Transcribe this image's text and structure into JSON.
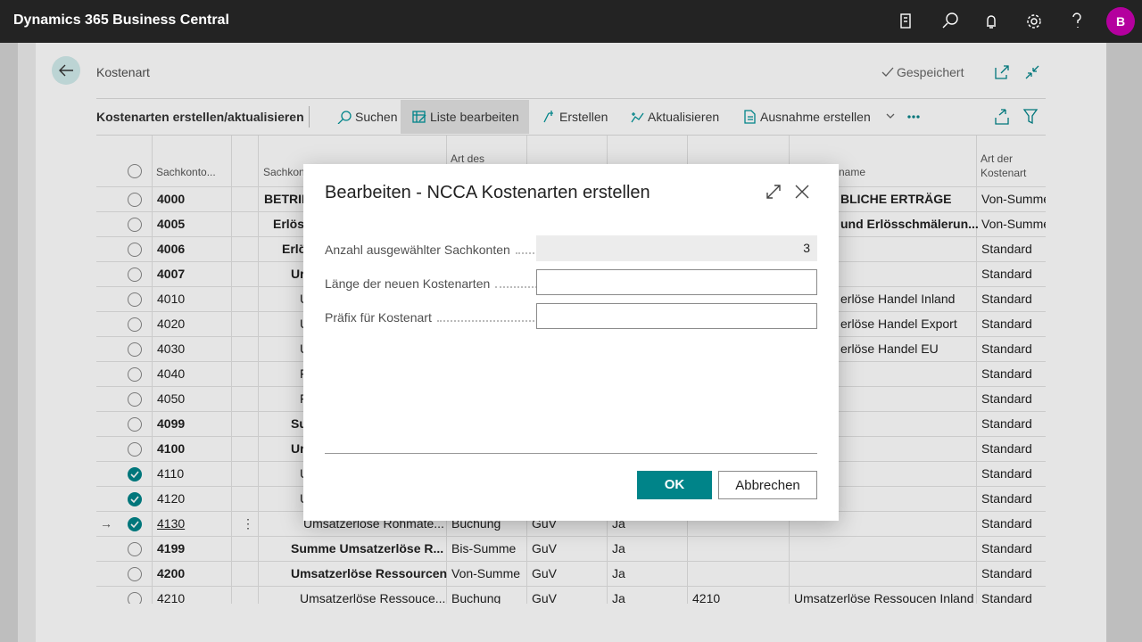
{
  "topbar": {
    "app_title": "Dynamics 365 Business Central",
    "avatar": "B"
  },
  "page": {
    "breadcrumb": "Kostenart",
    "status": "Gespeichert"
  },
  "actionbar": {
    "title": "Kostenarten erstellen/aktualisieren",
    "actions": [
      "Suchen",
      "Liste bearbeiten",
      "Erstellen",
      "Aktualisieren",
      "Ausnahme erstellen"
    ]
  },
  "table": {
    "headers": {
      "no": "Sachkonto...",
      "name": "Sachkon",
      "type": "Art des",
      "name2": "name",
      "kind": "Art der Kostenart"
    },
    "rows": [
      {
        "no": "4000",
        "name": "BETRIE",
        "type": null,
        "cat": null,
        "yn": null,
        "acc": null,
        "name2": "BLICHE ERTRÄGE",
        "kind": "Von-Summe",
        "selected": false
      },
      {
        "no": "4005",
        "name": "Erlös",
        "type": null,
        "cat": null,
        "yn": null,
        "acc": null,
        "name2": "und Erlösschmälerun...",
        "kind": "Von-Summe",
        "selected": false
      },
      {
        "no": "4006",
        "name": "Erlö",
        "type": null,
        "cat": null,
        "yn": null,
        "acc": null,
        "name2": null,
        "kind": "Standard",
        "selected": false
      },
      {
        "no": "4007",
        "name": "Ur",
        "type": null,
        "cat": null,
        "yn": null,
        "acc": null,
        "name2": null,
        "kind": "Standard",
        "selected": false
      },
      {
        "no": "4010",
        "name": "U",
        "type": null,
        "cat": null,
        "yn": null,
        "acc": null,
        "name2": "erlöse Handel Inland",
        "kind": "Standard",
        "selected": false
      },
      {
        "no": "4020",
        "name": "U",
        "type": null,
        "cat": null,
        "yn": null,
        "acc": null,
        "name2": "erlöse Handel Export",
        "kind": "Standard",
        "selected": false
      },
      {
        "no": "4030",
        "name": "U",
        "type": null,
        "cat": null,
        "yn": null,
        "acc": null,
        "name2": "erlöse Handel EU",
        "kind": "Standard",
        "selected": false
      },
      {
        "no": "4040",
        "name": "F",
        "type": null,
        "cat": null,
        "yn": null,
        "acc": null,
        "name2": null,
        "kind": "Standard",
        "selected": false
      },
      {
        "no": "4050",
        "name": "F",
        "type": null,
        "cat": null,
        "yn": null,
        "acc": null,
        "name2": null,
        "kind": "Standard",
        "selected": false
      },
      {
        "no": "4099",
        "name": "Su",
        "type": null,
        "cat": null,
        "yn": null,
        "acc": null,
        "name2": null,
        "kind": "Standard",
        "selected": false
      },
      {
        "no": "4100",
        "name": "Ur",
        "type": null,
        "cat": null,
        "yn": null,
        "acc": null,
        "name2": null,
        "kind": "Standard",
        "selected": false
      },
      {
        "no": "4110",
        "name": "U",
        "type": null,
        "cat": null,
        "yn": null,
        "acc": null,
        "name2": null,
        "kind": "Standard",
        "selected": true
      },
      {
        "no": "4120",
        "name": "U",
        "type": null,
        "cat": null,
        "yn": null,
        "acc": null,
        "name2": null,
        "kind": "Standard",
        "selected": true
      },
      {
        "no": "4130",
        "name": "Umsatzerlöse Rohmate...",
        "type": "Buchung",
        "cat": "GuV",
        "yn": "Ja",
        "acc": null,
        "name2": null,
        "kind": "Standard",
        "selected": true
      },
      {
        "no": "4199",
        "name": "Summe Umsatzerlöse R...",
        "type": "Bis-Summe",
        "cat": "GuV",
        "yn": "Ja",
        "acc": null,
        "name2": null,
        "kind": "Standard",
        "selected": false
      },
      {
        "no": "4200",
        "name": "Umsatzerlöse Ressourcen",
        "type": "Von-Summe",
        "cat": "GuV",
        "yn": "Ja",
        "acc": null,
        "name2": null,
        "kind": "Standard",
        "selected": false
      },
      {
        "no": "4210",
        "name": "Umsatzerlöse Ressouce...",
        "type": "Buchung",
        "cat": "GuV",
        "yn": "Ja",
        "acc": "4210",
        "name2": "Umsatzerlöse Ressoucen Inland",
        "kind": "Standard",
        "selected": false
      }
    ]
  },
  "dialog": {
    "title": "Bearbeiten - NCCA Kostenarten erstellen",
    "fields": [
      {
        "label": "Anzahl ausgewählter Sachkonten",
        "value": "3"
      },
      {
        "label": "Länge der neuen Kostenarten",
        "value": null
      },
      {
        "label": "Präfix für Kostenart",
        "value": null
      }
    ],
    "ok": "OK",
    "cancel": "Abbrechen"
  }
}
